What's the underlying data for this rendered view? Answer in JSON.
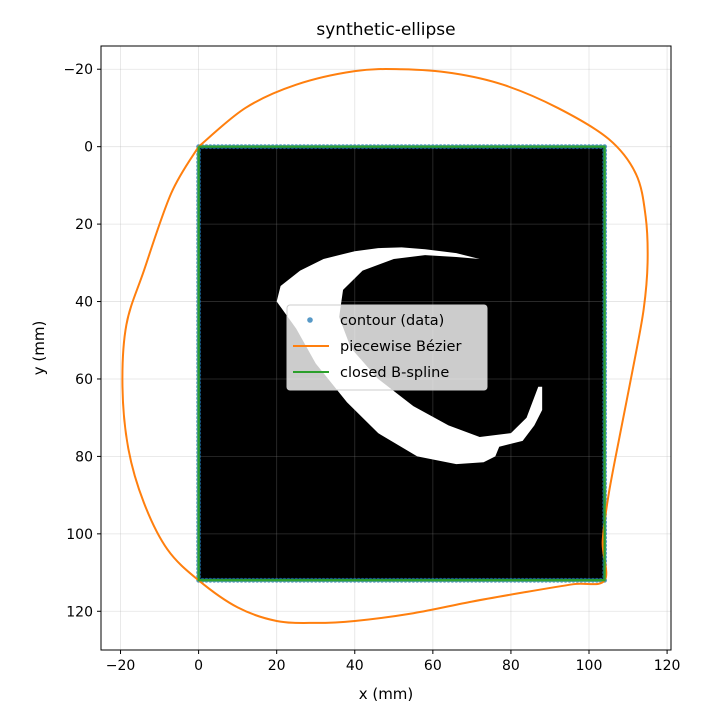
{
  "chart_data": {
    "type": "line",
    "title": "synthetic-ellipse",
    "xlabel": "x (mm)",
    "ylabel": "y (mm)",
    "xlim": [
      -25,
      121
    ],
    "ylim": [
      130,
      -26
    ],
    "y_inverted": true,
    "grid": true,
    "x_ticks": [
      -20,
      0,
      20,
      40,
      60,
      80,
      100,
      120
    ],
    "y_ticks": [
      -20,
      0,
      20,
      40,
      60,
      80,
      100,
      120
    ],
    "x_tick_labels": [
      "−20",
      "0",
      "20",
      "40",
      "60",
      "80",
      "100",
      "120"
    ],
    "y_tick_labels": [
      "−20",
      "0",
      "20",
      "40",
      "60",
      "80",
      "100",
      "120"
    ],
    "background_image": {
      "description_kind": "binary mask",
      "extent_x": [
        0,
        104
      ],
      "extent_y": [
        0,
        112
      ],
      "fill_color": "#000000",
      "shape_color": "#ffffff",
      "crescent_outline": [
        [
          52,
          26
        ],
        [
          58,
          26.5
        ],
        [
          66,
          27.5
        ],
        [
          72,
          29
        ],
        [
          66,
          28.5
        ],
        [
          58,
          28
        ],
        [
          50,
          29
        ],
        [
          42,
          32
        ],
        [
          37,
          37
        ],
        [
          36,
          44
        ],
        [
          39,
          52
        ],
        [
          46,
          60
        ],
        [
          55,
          67
        ],
        [
          64,
          72
        ],
        [
          72,
          75
        ],
        [
          80,
          74
        ],
        [
          84,
          70
        ],
        [
          87,
          62
        ],
        [
          88,
          62
        ],
        [
          88,
          68
        ],
        [
          86,
          72
        ],
        [
          83,
          76
        ],
        [
          79,
          77
        ],
        [
          77,
          77.5
        ],
        [
          76,
          80
        ],
        [
          73,
          81.5
        ],
        [
          66,
          82
        ],
        [
          56,
          80
        ],
        [
          46,
          74
        ],
        [
          38,
          66
        ],
        [
          30,
          56
        ],
        [
          25,
          47
        ],
        [
          20,
          40
        ],
        [
          21,
          36
        ],
        [
          26,
          32
        ],
        [
          32,
          29
        ],
        [
          40,
          27
        ],
        [
          46,
          26.2
        ]
      ]
    },
    "series": [
      {
        "name": "contour (data)",
        "kind": "scatter",
        "color": "#1f77b4",
        "points": [
          [
            0,
            0
          ],
          [
            104,
            0
          ],
          [
            104,
            112
          ],
          [
            0,
            112
          ]
        ],
        "spacing": 1
      },
      {
        "name": "piecewise Bézier",
        "kind": "line",
        "color": "#ff7f0e",
        "points": [
          [
            0,
            0
          ],
          [
            12,
            -10
          ],
          [
            25,
            -16
          ],
          [
            40,
            -19.5
          ],
          [
            52,
            -20
          ],
          [
            65,
            -19
          ],
          [
            78,
            -16
          ],
          [
            92,
            -10
          ],
          [
            105,
            -2
          ],
          [
            112,
            7
          ],
          [
            114.5,
            18
          ],
          [
            115,
            30
          ],
          [
            114,
            42
          ],
          [
            111.5,
            56
          ],
          [
            108,
            74
          ],
          [
            105,
            90
          ],
          [
            103.5,
            102
          ],
          [
            104,
            112
          ],
          [
            96,
            113
          ],
          [
            84,
            115
          ],
          [
            70,
            117.5
          ],
          [
            55,
            120.5
          ],
          [
            40,
            122.5
          ],
          [
            30,
            123
          ],
          [
            20,
            122.5
          ],
          [
            10,
            119
          ],
          [
            0,
            112
          ],
          [
            -8,
            104
          ],
          [
            -14,
            92
          ],
          [
            -18,
            78
          ],
          [
            -19.5,
            62
          ],
          [
            -18.5,
            46
          ],
          [
            -14,
            32
          ],
          [
            -7,
            12
          ],
          [
            0,
            0
          ]
        ]
      },
      {
        "name": "closed B-spline",
        "kind": "line",
        "color": "#2ca02c",
        "points": [
          [
            0,
            0
          ],
          [
            104,
            0
          ],
          [
            104,
            112
          ],
          [
            0,
            112
          ],
          [
            0,
            0
          ]
        ]
      }
    ],
    "legend": {
      "placement": "center",
      "entries": [
        "contour (data)",
        "piecewise Bézier",
        "closed B-spline"
      ]
    }
  }
}
